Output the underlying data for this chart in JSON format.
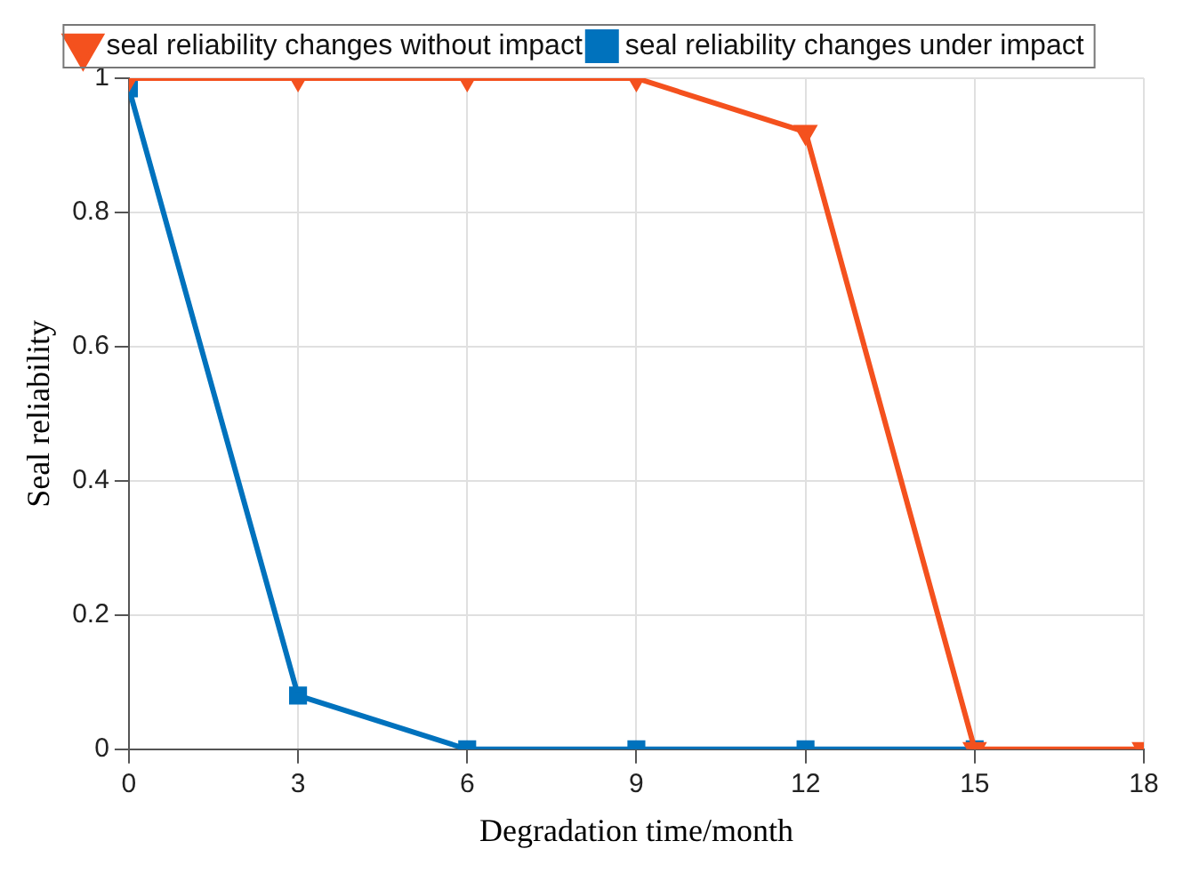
{
  "chart_data": {
    "type": "line",
    "xlabel": "Degradation time/month",
    "ylabel": "Seal reliability",
    "x": [
      0,
      3,
      6,
      9,
      12,
      15,
      18
    ],
    "series": [
      {
        "name": "seal reliability changes under impact",
        "color": "#0072bd",
        "marker": "square",
        "values": [
          0.985,
          0.08,
          0,
          0,
          0,
          0,
          null
        ]
      },
      {
        "name": "seal reliability changes without impact",
        "color": "#f4511e",
        "marker": "triangle",
        "values": [
          1,
          1,
          1,
          1,
          0.92,
          0,
          0
        ]
      }
    ],
    "xlim": [
      0,
      18
    ],
    "xticks": [
      0,
      3,
      6,
      9,
      12,
      15,
      18
    ],
    "ylim": [
      0,
      1
    ],
    "yticks": [
      0,
      0.2,
      0.4,
      0.6,
      0.8,
      1
    ],
    "grid": true,
    "legend": "top",
    "line_style": "solid"
  }
}
